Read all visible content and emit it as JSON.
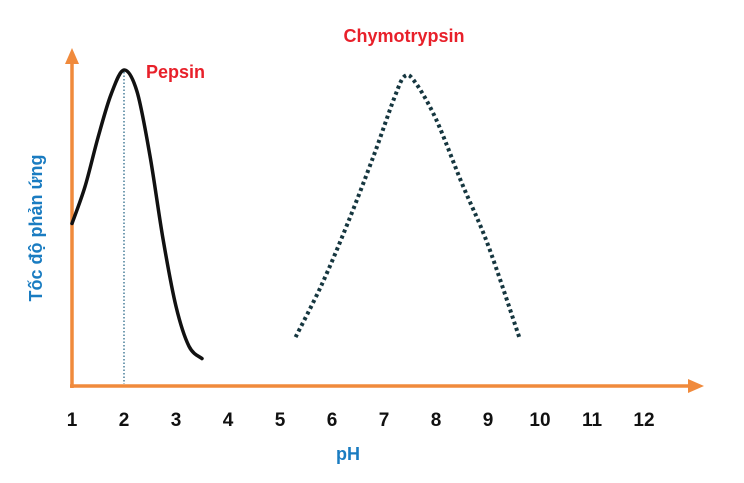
{
  "chart_data": {
    "type": "line",
    "title": "",
    "xlabel": "pH",
    "ylabel": "Tốc độ phản ứng",
    "x_ticks": [
      1,
      2,
      3,
      4,
      5,
      6,
      7,
      8,
      9,
      10,
      11,
      12
    ],
    "xlim": [
      1,
      12
    ],
    "ylim": [
      0,
      1
    ],
    "grid": false,
    "legend": "none",
    "colors": {
      "axis": "#f08a3c",
      "axis_label": "#1a7cc1",
      "series_label": "#e8202a",
      "pepsin_line": "#111111",
      "chymotrypsin_line": "#15363f",
      "peak_marker": "#1a5e80",
      "tick_label": "#111111"
    },
    "series": [
      {
        "name": "Pepsin",
        "style": "solid",
        "x": [
          1.0,
          1.25,
          1.5,
          1.75,
          2.0,
          2.25,
          2.5,
          2.75,
          3.0,
          3.25,
          3.5
        ],
        "y": [
          0.5,
          0.62,
          0.78,
          0.92,
          1.0,
          0.93,
          0.72,
          0.45,
          0.23,
          0.1,
          0.06
        ]
      },
      {
        "name": "Chymotrypsin",
        "style": "dotted",
        "x": [
          5.3,
          5.8,
          6.3,
          6.8,
          7.2,
          7.4,
          7.6,
          8.0,
          8.5,
          9.0,
          9.6
        ],
        "y": [
          0.13,
          0.3,
          0.5,
          0.72,
          0.91,
          0.98,
          0.96,
          0.84,
          0.63,
          0.43,
          0.13
        ]
      }
    ],
    "annotations": [
      {
        "type": "vertical-dotted-line",
        "x": 2,
        "series": "Pepsin"
      }
    ]
  }
}
